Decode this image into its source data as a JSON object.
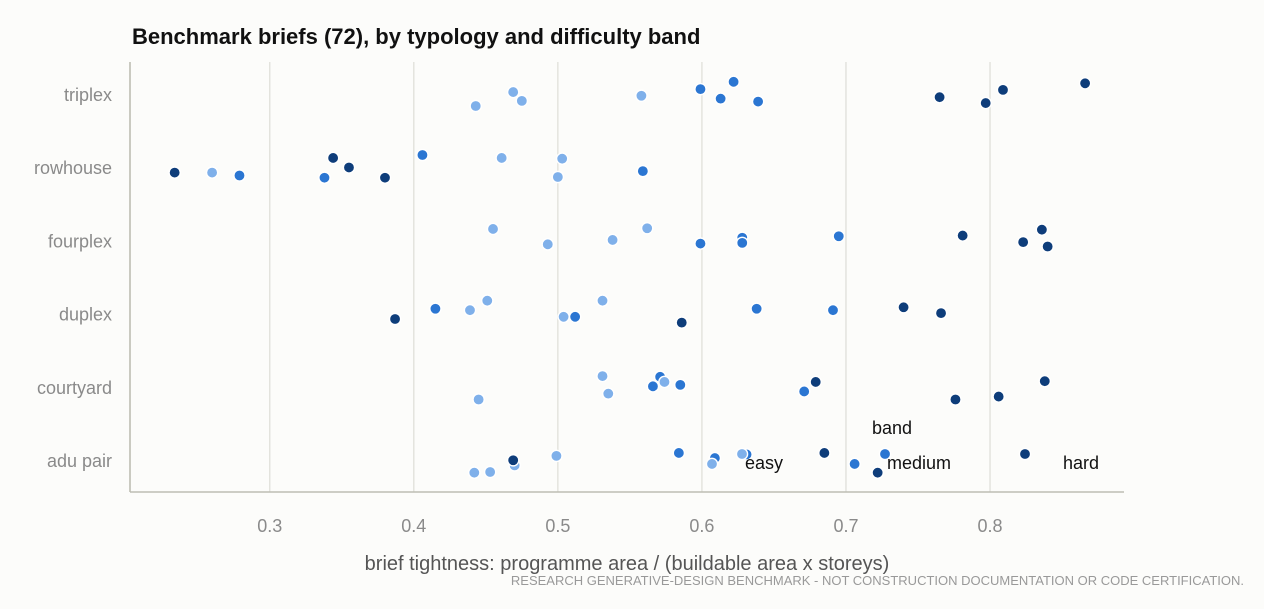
{
  "chart_data": {
    "type": "scatter",
    "title": "Benchmark briefs (72), by typology and difficulty band",
    "xlabel": "brief tightness: programme area / (buildable area x storeys)",
    "footer": "RESEARCH GENERATIVE-DESIGN BENCHMARK - NOT CONSTRUCTION DOCUMENTATION OR CODE CERTIFICATION.",
    "categories": [
      "triplex",
      "rowhouse",
      "fourplex",
      "duplex",
      "courtyard",
      "adu pair"
    ],
    "xlim": [
      0.203,
      0.893
    ],
    "x_ticks": [
      0.3,
      0.4,
      0.5,
      0.6,
      0.7,
      0.8
    ],
    "x_tick_labels": [
      "0.3",
      "0.4",
      "0.5",
      "0.6",
      "0.7",
      "0.8"
    ],
    "grid": "vertical",
    "legend": {
      "title": "band",
      "placement": "bottom-right",
      "entries": [
        {
          "label": "easy",
          "color": "#7fb0ea"
        },
        {
          "label": "medium",
          "color": "#2b76d2"
        },
        {
          "label": "hard",
          "color": "#0e3d7a"
        }
      ]
    },
    "colors": {
      "easy": "#7fb0ea",
      "medium": "#2b76d2",
      "hard": "#0e3d7a"
    },
    "points": [
      {
        "category": "triplex",
        "x": 0.443,
        "band": "easy",
        "jitter": -0.15
      },
      {
        "category": "triplex",
        "x": 0.469,
        "band": "easy",
        "jitter": 0.04
      },
      {
        "category": "triplex",
        "x": 0.475,
        "band": "easy",
        "jitter": -0.08
      },
      {
        "category": "triplex",
        "x": 0.558,
        "band": "easy",
        "jitter": -0.01
      },
      {
        "category": "triplex",
        "x": 0.599,
        "band": "medium",
        "jitter": 0.08
      },
      {
        "category": "triplex",
        "x": 0.613,
        "band": "medium",
        "jitter": -0.05
      },
      {
        "category": "triplex",
        "x": 0.622,
        "band": "medium",
        "jitter": 0.18
      },
      {
        "category": "triplex",
        "x": 0.639,
        "band": "medium",
        "jitter": -0.09
      },
      {
        "category": "triplex",
        "x": 0.765,
        "band": "hard",
        "jitter": -0.03
      },
      {
        "category": "triplex",
        "x": 0.797,
        "band": "hard",
        "jitter": -0.11
      },
      {
        "category": "triplex",
        "x": 0.809,
        "band": "hard",
        "jitter": 0.07
      },
      {
        "category": "triplex",
        "x": 0.866,
        "band": "hard",
        "jitter": 0.16
      },
      {
        "category": "rowhouse",
        "x": 0.234,
        "band": "hard",
        "jitter": -0.06
      },
      {
        "category": "rowhouse",
        "x": 0.26,
        "band": "easy",
        "jitter": -0.06
      },
      {
        "category": "rowhouse",
        "x": 0.279,
        "band": "medium",
        "jitter": -0.1
      },
      {
        "category": "rowhouse",
        "x": 0.338,
        "band": "medium",
        "jitter": -0.13
      },
      {
        "category": "rowhouse",
        "x": 0.344,
        "band": "hard",
        "jitter": 0.14
      },
      {
        "category": "rowhouse",
        "x": 0.355,
        "band": "hard",
        "jitter": 0.01
      },
      {
        "category": "rowhouse",
        "x": 0.38,
        "band": "hard",
        "jitter": -0.13
      },
      {
        "category": "rowhouse",
        "x": 0.406,
        "band": "medium",
        "jitter": 0.18
      },
      {
        "category": "rowhouse",
        "x": 0.461,
        "band": "easy",
        "jitter": 0.14
      },
      {
        "category": "rowhouse",
        "x": 0.5,
        "band": "easy",
        "jitter": -0.12
      },
      {
        "category": "rowhouse",
        "x": 0.503,
        "band": "easy",
        "jitter": 0.13
      },
      {
        "category": "rowhouse",
        "x": 0.559,
        "band": "medium",
        "jitter": -0.04
      },
      {
        "category": "fourplex",
        "x": 0.455,
        "band": "easy",
        "jitter": 0.17
      },
      {
        "category": "fourplex",
        "x": 0.493,
        "band": "easy",
        "jitter": -0.04
      },
      {
        "category": "fourplex",
        "x": 0.538,
        "band": "easy",
        "jitter": 0.02
      },
      {
        "category": "fourplex",
        "x": 0.562,
        "band": "easy",
        "jitter": 0.18
      },
      {
        "category": "fourplex",
        "x": 0.599,
        "band": "medium",
        "jitter": -0.03
      },
      {
        "category": "fourplex",
        "x": 0.628,
        "band": "medium",
        "jitter": 0.05
      },
      {
        "category": "fourplex",
        "x": 0.628,
        "band": "medium",
        "jitter": -0.02
      },
      {
        "category": "fourplex",
        "x": 0.695,
        "band": "medium",
        "jitter": 0.07
      },
      {
        "category": "fourplex",
        "x": 0.781,
        "band": "hard",
        "jitter": 0.08
      },
      {
        "category": "fourplex",
        "x": 0.823,
        "band": "hard",
        "jitter": -0.01
      },
      {
        "category": "fourplex",
        "x": 0.836,
        "band": "hard",
        "jitter": 0.16
      },
      {
        "category": "fourplex",
        "x": 0.84,
        "band": "hard",
        "jitter": -0.07
      },
      {
        "category": "duplex",
        "x": 0.387,
        "band": "hard",
        "jitter": -0.06
      },
      {
        "category": "duplex",
        "x": 0.415,
        "band": "medium",
        "jitter": 0.08
      },
      {
        "category": "duplex",
        "x": 0.439,
        "band": "easy",
        "jitter": 0.06
      },
      {
        "category": "duplex",
        "x": 0.451,
        "band": "easy",
        "jitter": 0.19
      },
      {
        "category": "duplex",
        "x": 0.504,
        "band": "easy",
        "jitter": -0.03
      },
      {
        "category": "duplex",
        "x": 0.512,
        "band": "medium",
        "jitter": -0.03
      },
      {
        "category": "duplex",
        "x": 0.531,
        "band": "easy",
        "jitter": 0.19
      },
      {
        "category": "duplex",
        "x": 0.586,
        "band": "hard",
        "jitter": -0.11
      },
      {
        "category": "duplex",
        "x": 0.638,
        "band": "medium",
        "jitter": 0.08
      },
      {
        "category": "duplex",
        "x": 0.691,
        "band": "medium",
        "jitter": 0.06
      },
      {
        "category": "duplex",
        "x": 0.74,
        "band": "hard",
        "jitter": 0.1
      },
      {
        "category": "duplex",
        "x": 0.766,
        "band": "hard",
        "jitter": 0.02
      },
      {
        "category": "courtyard",
        "x": 0.445,
        "band": "easy",
        "jitter": -0.16
      },
      {
        "category": "courtyard",
        "x": 0.531,
        "band": "easy",
        "jitter": 0.16
      },
      {
        "category": "courtyard",
        "x": 0.535,
        "band": "easy",
        "jitter": -0.08
      },
      {
        "category": "courtyard",
        "x": 0.566,
        "band": "medium",
        "jitter": 0.02
      },
      {
        "category": "courtyard",
        "x": 0.571,
        "band": "medium",
        "jitter": 0.15
      },
      {
        "category": "courtyard",
        "x": 0.574,
        "band": "easy",
        "jitter": 0.08
      },
      {
        "category": "courtyard",
        "x": 0.585,
        "band": "medium",
        "jitter": 0.04
      },
      {
        "category": "courtyard",
        "x": 0.671,
        "band": "medium",
        "jitter": -0.05
      },
      {
        "category": "courtyard",
        "x": 0.679,
        "band": "hard",
        "jitter": 0.08
      },
      {
        "category": "courtyard",
        "x": 0.776,
        "band": "hard",
        "jitter": -0.16
      },
      {
        "category": "courtyard",
        "x": 0.806,
        "band": "hard",
        "jitter": -0.12
      },
      {
        "category": "courtyard",
        "x": 0.838,
        "band": "hard",
        "jitter": 0.09
      },
      {
        "category": "adu pair",
        "x": 0.442,
        "band": "easy",
        "jitter": -0.16
      },
      {
        "category": "adu pair",
        "x": 0.453,
        "band": "easy",
        "jitter": -0.15
      },
      {
        "category": "adu pair",
        "x": 0.47,
        "band": "easy",
        "jitter": -0.06
      },
      {
        "category": "adu pair",
        "x": 0.469,
        "band": "hard",
        "jitter": 0.01
      },
      {
        "category": "adu pair",
        "x": 0.499,
        "band": "easy",
        "jitter": 0.07
      },
      {
        "category": "adu pair",
        "x": 0.584,
        "band": "medium",
        "jitter": 0.11
      },
      {
        "category": "adu pair",
        "x": 0.609,
        "band": "medium",
        "jitter": 0.04
      },
      {
        "category": "adu pair",
        "x": 0.607,
        "band": "easy",
        "jitter": -0.04
      },
      {
        "category": "adu pair",
        "x": 0.631,
        "band": "medium",
        "jitter": 0.09
      },
      {
        "category": "adu pair",
        "x": 0.685,
        "band": "hard",
        "jitter": 0.11
      },
      {
        "category": "adu pair",
        "x": 0.706,
        "band": "medium",
        "jitter": -0.04
      },
      {
        "category": "adu pair",
        "x": 0.722,
        "band": "hard",
        "jitter": -0.16
      }
    ]
  }
}
